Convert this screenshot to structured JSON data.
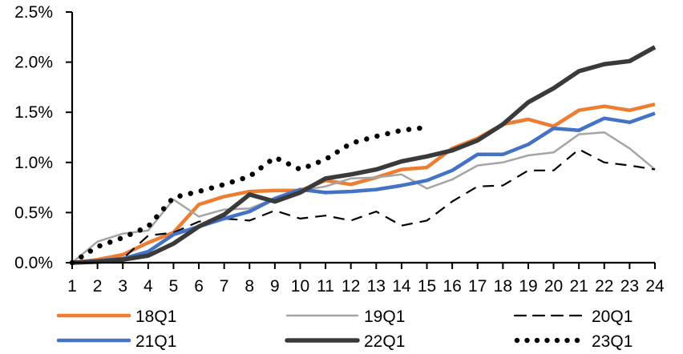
{
  "chart_data": {
    "type": "line",
    "title": "",
    "xlabel": "",
    "ylabel": "",
    "x": [
      1,
      2,
      3,
      4,
      5,
      6,
      7,
      8,
      9,
      10,
      11,
      12,
      13,
      14,
      15,
      16,
      17,
      18,
      19,
      20,
      21,
      22,
      23,
      24
    ],
    "x_tick_labels": [
      "1",
      "2",
      "3",
      "4",
      "5",
      "6",
      "7",
      "8",
      "9",
      "10",
      "11",
      "12",
      "13",
      "14",
      "15",
      "16",
      "17",
      "18",
      "19",
      "20",
      "21",
      "22",
      "23",
      "24"
    ],
    "ylim": [
      0,
      2.5
    ],
    "y_ticks": [
      0,
      0.5,
      1.0,
      1.5,
      2.0,
      2.5
    ],
    "y_tick_labels": [
      "0.0%",
      "0.5%",
      "1.0%",
      "1.5%",
      "2.0%",
      "2.5%"
    ],
    "grid": false,
    "legend_position": "bottom",
    "series": [
      {
        "name": "18Q1",
        "color": "#ED7D31",
        "style": "solid-thick",
        "values": [
          0,
          0.03,
          0.08,
          0.2,
          0.3,
          0.58,
          0.66,
          0.71,
          0.72,
          0.72,
          0.82,
          0.78,
          0.85,
          0.93,
          0.95,
          1.14,
          1.24,
          1.38,
          1.43,
          1.36,
          1.52,
          1.56,
          1.52,
          1.58
        ]
      },
      {
        "name": "19Q1",
        "color": "#A5A5A5",
        "style": "solid-thin",
        "values": [
          0,
          0.21,
          0.29,
          0.32,
          0.63,
          0.46,
          0.53,
          0.54,
          0.64,
          0.72,
          0.76,
          0.84,
          0.85,
          0.88,
          0.74,
          0.83,
          0.97,
          1.0,
          1.07,
          1.1,
          1.28,
          1.3,
          1.14,
          0.93
        ]
      },
      {
        "name": "20Q1",
        "color": "#000000",
        "style": "dashed",
        "values": [
          0,
          0.02,
          0.04,
          0.27,
          0.3,
          0.41,
          0.44,
          0.42,
          0.52,
          0.44,
          0.47,
          0.42,
          0.51,
          0.37,
          0.42,
          0.61,
          0.76,
          0.77,
          0.92,
          0.92,
          1.13,
          1.0,
          0.97,
          0.93
        ]
      },
      {
        "name": "21Q1",
        "color": "#4472C4",
        "style": "solid-thick",
        "values": [
          0,
          0.02,
          0.04,
          0.11,
          0.28,
          0.36,
          0.44,
          0.51,
          0.64,
          0.73,
          0.7,
          0.71,
          0.73,
          0.77,
          0.82,
          0.92,
          1.08,
          1.08,
          1.18,
          1.34,
          1.32,
          1.44,
          1.4,
          1.49
        ]
      },
      {
        "name": "22Q1",
        "color": "#3A3A3A",
        "style": "solid-extra-thick",
        "values": [
          0,
          0.01,
          0.03,
          0.07,
          0.19,
          0.36,
          0.48,
          0.68,
          0.61,
          0.7,
          0.84,
          0.88,
          0.93,
          1.01,
          1.06,
          1.12,
          1.22,
          1.38,
          1.6,
          1.74,
          1.91,
          1.98,
          2.01,
          2.15
        ]
      },
      {
        "name": "23Q1",
        "color": "#000000",
        "style": "dotted",
        "values": [
          0,
          0.16,
          0.25,
          0.36,
          0.65,
          0.71,
          0.78,
          0.86,
          1.05,
          0.93,
          1.03,
          1.19,
          1.26,
          1.32,
          1.35
        ]
      }
    ]
  }
}
